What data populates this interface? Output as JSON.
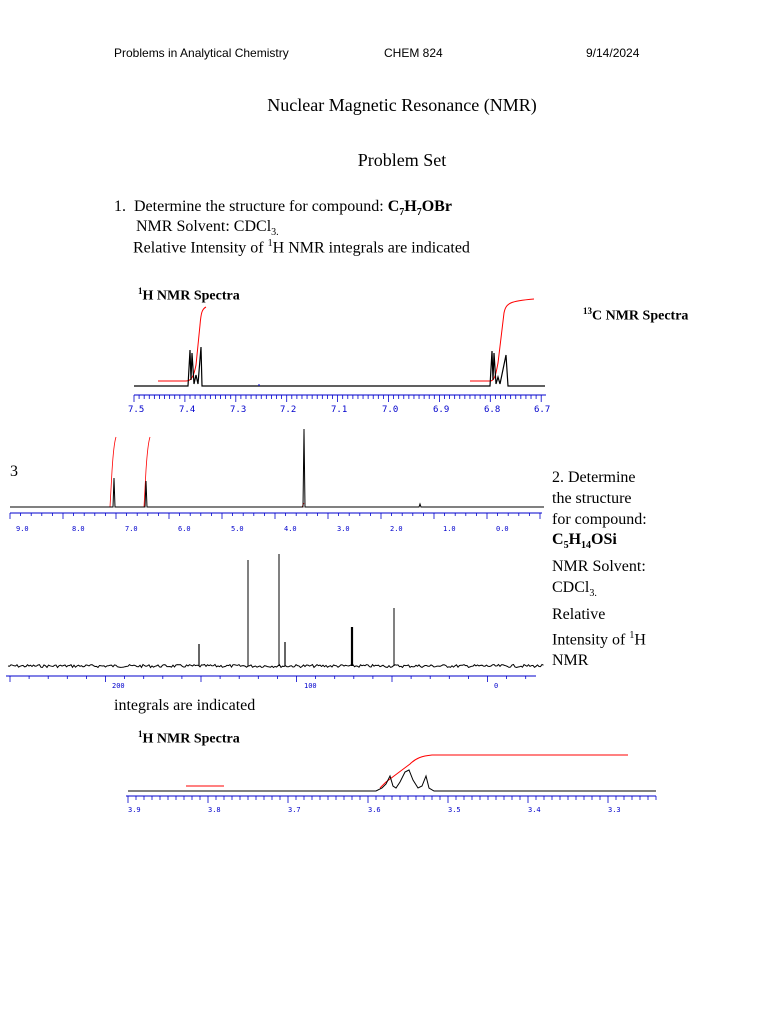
{
  "header": {
    "course_name": "Problems in Analytical Chemistry",
    "course_code": "CHEM 824",
    "date": "9/14/2024"
  },
  "title": "Nuclear Magnetic Resonance (NMR)",
  "subtitle": "Problem Set",
  "problem1": {
    "number": "1.",
    "prompt": "Determine the structure for compound:",
    "formula": {
      "p1": "C",
      "s1": "7",
      "p2": "H",
      "s2": "7",
      "p3": "OBr"
    },
    "solvent_label": "NMR Solvent: CDCl",
    "solvent_sub": "3.",
    "intensity_pre": "Relative Intensity of ",
    "intensity_sup": "1",
    "intensity_post": "H NMR integrals are indicated",
    "h_spectrum_sup": "1",
    "h_spectrum_label": "H NMR Spectra",
    "c_spectrum_sup": "13",
    "c_spectrum_label": "C NMR Spectra"
  },
  "page_marker": "3",
  "problem2": {
    "text_pre": "2. Determine the structure for compound: ",
    "formula": {
      "p1": "C",
      "s1": "5",
      "p2": "H",
      "s2": "14",
      "p3": "OSi"
    },
    "solvent_label": " NMR Solvent: CDCl",
    "solvent_sub": "3.",
    "intensity_pre": " Relative Intensity of ",
    "intensity_sup": "1",
    "intensity_post": "H NMR",
    "continued": "integrals are indicated",
    "h_spectrum_sup": "1",
    "h_spectrum_label": "H NMR Spectra"
  },
  "spectrum_axes": {
    "h1_expanded": [
      "7.5",
      "7.4",
      "7.3",
      "7.2",
      "7.1",
      "7.0",
      "6.9",
      "6.8",
      "6.7"
    ],
    "h1_full": [
      "9.0",
      "8.0",
      "7.0",
      "6.0",
      "5.0",
      "4.0",
      "3.0",
      "2.0",
      "1.0",
      "0.0"
    ],
    "c13": [
      "200",
      "100",
      "0"
    ],
    "h2_expanded": [
      "3.9",
      "3.8",
      "3.7",
      "3.6",
      "3.5",
      "3.4",
      "3.3"
    ]
  },
  "colors": {
    "axis": "#0000cc",
    "integral": "#ff0000",
    "trace": "#000000"
  }
}
